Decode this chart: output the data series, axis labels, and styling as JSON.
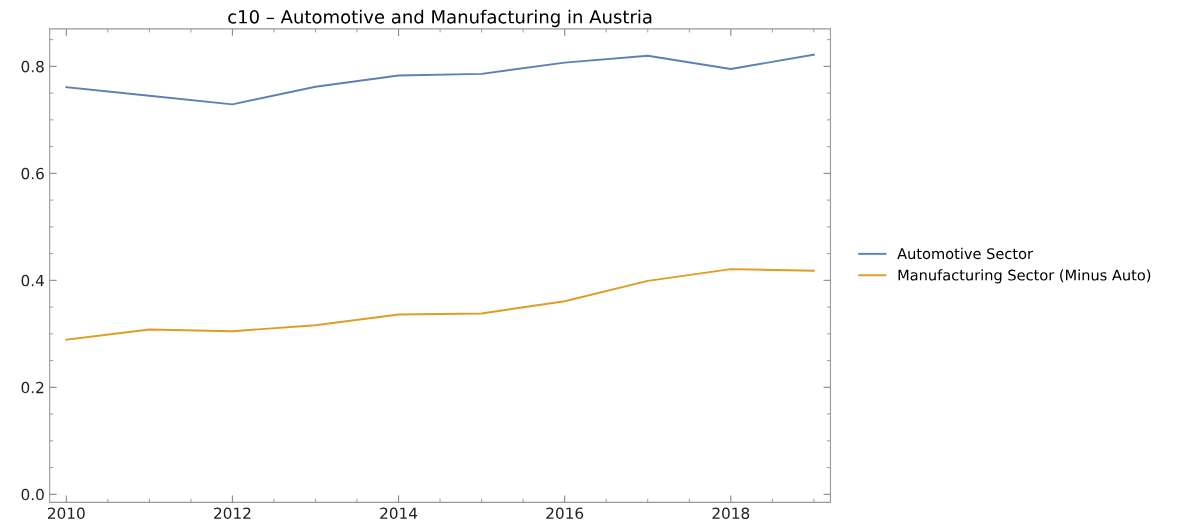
{
  "chart_data": {
    "type": "line",
    "title": "c10 – Automotive and Manufacturing in Austria",
    "x": [
      2010,
      2011,
      2012,
      2013,
      2014,
      2015,
      2016,
      2017,
      2018,
      2019
    ],
    "series": [
      {
        "name": "Automotive Sector",
        "color": "#5e81b5",
        "values": [
          0.761,
          0.745,
          0.729,
          0.762,
          0.783,
          0.786,
          0.807,
          0.82,
          0.795,
          0.822
        ]
      },
      {
        "name": "Manufacturing Sector (Minus Auto)",
        "color": "#e19c24",
        "values": [
          0.289,
          0.308,
          0.305,
          0.316,
          0.336,
          0.338,
          0.361,
          0.399,
          0.421,
          0.418
        ]
      }
    ],
    "xlim": [
      2009.8,
      2019.2
    ],
    "xticks": [
      2010,
      2012,
      2014,
      2016,
      2018
    ],
    "ylim": [
      -0.015,
      0.87
    ],
    "yticks": [
      {
        "value": 0,
        "label": "0.0"
      },
      {
        "value": 0.2,
        "label": "0.2"
      },
      {
        "value": 0.4,
        "label": "0.4"
      },
      {
        "value": 0.6,
        "label": "0.6"
      },
      {
        "value": 0.8,
        "label": "0.8"
      }
    ],
    "legend": "right",
    "marker": "none",
    "line_style": "solid",
    "grid": false
  }
}
